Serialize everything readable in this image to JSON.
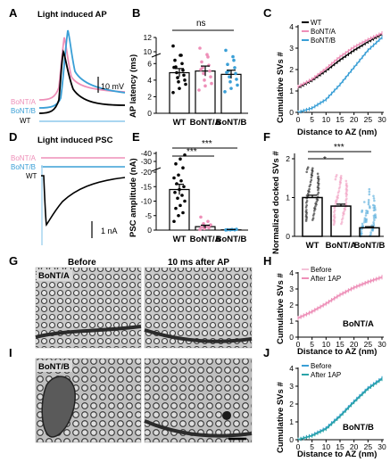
{
  "panels": {
    "A": {
      "letter": "A",
      "title": "Light induced AP",
      "scale_label": "10 mV",
      "trace_labels": [
        "BoNT/A",
        "BoNT/B",
        "WT"
      ]
    },
    "B": {
      "letter": "B",
      "ylabel": "AP latency (ms)",
      "significance": "ns"
    },
    "C": {
      "letter": "C",
      "ylabel": "Cumulative SVs #",
      "xlabel": "Distance to AZ (nm)"
    },
    "D": {
      "letter": "D",
      "title": "Light induced PSC",
      "scale_label": "1 nA",
      "trace_labels": [
        "BoNT/A",
        "BoNT/B",
        "WT"
      ]
    },
    "E": {
      "letter": "E",
      "ylabel": "PSC amplitude (nA)",
      "stars": [
        "***",
        "***"
      ]
    },
    "F": {
      "letter": "F",
      "ylabel": "Normalized docked SVs #",
      "stars": [
        "*",
        "***"
      ]
    },
    "G": {
      "letter": "G",
      "col_before": "Before",
      "col_after": "10 ms after AP",
      "tag": "BoNT/A"
    },
    "H": {
      "letter": "H",
      "ylabel": "Cumulative SVs #",
      "xlabel": "Distance to AZ (nm)",
      "tag": "BoNT/A"
    },
    "I": {
      "letter": "I",
      "tag": "BoNT/B"
    },
    "J": {
      "letter": "J",
      "ylabel": "Cumulative SVs #",
      "xlabel": "Distance to AZ (nm)",
      "tag": "BoNT/B"
    }
  },
  "colors": {
    "wt": "#000000",
    "bonta": "#ee8fb8",
    "bontb": "#3a9fd6",
    "bontb_light": "#a9d6f0",
    "bonta_light": "#f4c2d8",
    "teal": "#2aa3a8"
  },
  "chart_data": [
    {
      "panel": "B",
      "type": "bar",
      "categories": [
        "WT",
        "BoNT/A",
        "BoNT/B"
      ],
      "values": [
        4.9,
        5.1,
        4.7
      ],
      "errors": [
        0.5,
        0.6,
        0.5
      ],
      "ylabel": "AP latency (ms)",
      "yticks": [
        "0",
        "2",
        "4",
        "6",
        "10",
        "12"
      ],
      "points": [
        [
          2.5,
          3.0,
          3.5,
          3.8,
          4.0,
          4.3,
          4.6,
          4.9,
          5.2,
          5.6,
          6.0,
          6.4,
          7.0,
          7.8,
          9.5,
          10.8
        ],
        [
          2.8,
          3.3,
          3.6,
          4.0,
          4.4,
          4.8,
          5.1,
          5.5,
          5.8,
          6.2,
          6.8,
          7.5,
          9.6,
          10.5
        ],
        [
          2.6,
          3.0,
          3.4,
          3.8,
          4.1,
          4.4,
          4.8,
          5.1,
          5.5,
          5.9,
          6.4,
          7.1,
          9.3,
          10.2
        ]
      ]
    },
    {
      "panel": "C",
      "type": "line",
      "x": [
        0,
        5,
        10,
        15,
        20,
        25,
        30
      ],
      "series": [
        {
          "name": "WT",
          "values": [
            1.15,
            1.5,
            1.95,
            2.45,
            2.9,
            3.3,
            3.65
          ]
        },
        {
          "name": "BoNT/A",
          "values": [
            1.2,
            1.55,
            2.05,
            2.6,
            3.05,
            3.4,
            3.7
          ]
        },
        {
          "name": "BoNT/B",
          "values": [
            0.0,
            0.2,
            0.6,
            1.3,
            2.1,
            2.9,
            3.5
          ]
        }
      ],
      "xlabel": "Distance to AZ (nm)",
      "ylabel": "Cumulative SVs #",
      "xlim": [
        0,
        30
      ],
      "ylim": [
        0,
        4
      ],
      "xticks": [
        "0",
        "5",
        "10",
        "15",
        "20",
        "25",
        "30"
      ],
      "yticks": [
        "0",
        "1",
        "2",
        "3",
        "4"
      ]
    },
    {
      "panel": "E",
      "type": "bar",
      "categories": [
        "WT",
        "BoNT/A",
        "BoNT/B"
      ],
      "values": [
        -14.0,
        -1.2,
        -0.1
      ],
      "errors": [
        1.8,
        0.5,
        0.1
      ],
      "ylabel": "PSC amplitude (nA)",
      "yticks": [
        "0",
        "-5",
        "-10",
        "-15",
        "-20",
        "-30",
        "-40"
      ],
      "points": [
        [
          -3,
          -5,
          -6,
          -7.5,
          -8.5,
          -10,
          -11,
          -12,
          -13,
          -14,
          -15,
          -16,
          -17,
          -18,
          -19,
          -22,
          -27,
          -33,
          -38
        ],
        [
          -0.2,
          -0.5,
          -0.8,
          -1.0,
          -1.3,
          -1.8,
          -2.2,
          -3.0,
          -4.5
        ],
        [
          -0.05,
          -0.1,
          -0.1,
          -0.15,
          -0.2,
          -0.3
        ]
      ]
    },
    {
      "panel": "F",
      "type": "bar",
      "categories": [
        "WT",
        "BoNT/A",
        "BoNT/B"
      ],
      "values": [
        1.0,
        0.78,
        0.22
      ],
      "errors": [
        0.06,
        0.05,
        0.03
      ],
      "yticks": [
        "0",
        "1",
        "2"
      ],
      "ylabel": "Normalized docked SVs #"
    },
    {
      "panel": "H",
      "type": "line",
      "x": [
        0,
        5,
        10,
        15,
        20,
        25,
        30
      ],
      "series": [
        {
          "name": "Before",
          "values": [
            1.15,
            1.55,
            2.05,
            2.6,
            3.05,
            3.4,
            3.7
          ]
        },
        {
          "name": "After 1AP",
          "values": [
            1.2,
            1.6,
            2.1,
            2.65,
            3.1,
            3.45,
            3.75
          ]
        }
      ],
      "xlabel": "Distance to AZ (nm)",
      "ylabel": "Cumulative SVs #",
      "xlim": [
        0,
        30
      ],
      "ylim": [
        0,
        4
      ],
      "xticks": [
        "0",
        "5",
        "10",
        "15",
        "20",
        "25",
        "30"
      ],
      "yticks": [
        "0",
        "1",
        "2",
        "3",
        "4"
      ]
    },
    {
      "panel": "J",
      "type": "line",
      "x": [
        0,
        5,
        10,
        15,
        20,
        25,
        30
      ],
      "series": [
        {
          "name": "Before",
          "values": [
            0.0,
            0.25,
            0.65,
            1.35,
            2.15,
            2.9,
            3.45
          ]
        },
        {
          "name": "After 1AP",
          "values": [
            0.0,
            0.22,
            0.6,
            1.3,
            2.1,
            2.85,
            3.4
          ]
        }
      ],
      "xlabel": "Distance to AZ (nm)",
      "ylabel": "Cumulative SVs #",
      "xlim": [
        0,
        30
      ],
      "ylim": [
        0,
        4
      ],
      "xticks": [
        "0",
        "5",
        "10",
        "15",
        "20",
        "25",
        "30"
      ],
      "yticks": [
        "0",
        "1",
        "2",
        "3",
        "4"
      ]
    }
  ]
}
